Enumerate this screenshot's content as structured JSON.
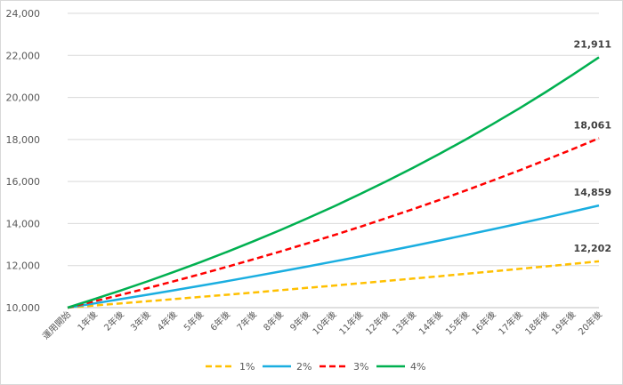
{
  "chart_data": {
    "type": "line",
    "title": "",
    "xlabel": "",
    "ylabel": "",
    "ylim": [
      10000,
      24000
    ],
    "yticks": [
      10000,
      12000,
      14000,
      16000,
      18000,
      20000,
      22000,
      24000
    ],
    "ytick_labels": [
      "10,000",
      "12,000",
      "14,000",
      "16,000",
      "18,000",
      "20,000",
      "22,000",
      "24,000"
    ],
    "grid": true,
    "legend_position": "bottom",
    "categories": [
      "運用開始",
      "1年後",
      "2年後",
      "3年後",
      "4年後",
      "5年後",
      "6年後",
      "7年後",
      "8年後",
      "9年後",
      "10年後",
      "11年後",
      "12年後",
      "13年後",
      "14年後",
      "15年後",
      "16年後",
      "17年後",
      "18年後",
      "19年後",
      "20年後"
    ],
    "series": [
      {
        "name": "1%",
        "color": "#ffc000",
        "dash": "dashed",
        "values": [
          10000,
          10100,
          10201,
          10303,
          10406,
          10510,
          10615,
          10721,
          10829,
          10937,
          11046,
          11157,
          11268,
          11381,
          11495,
          11610,
          11726,
          11843,
          11961,
          12081,
          12202
        ],
        "end_label": "12,202"
      },
      {
        "name": "2%",
        "color": "#1aaee0",
        "dash": "solid",
        "values": [
          10000,
          10200,
          10404,
          10612,
          10824,
          11041,
          11262,
          11487,
          11717,
          11951,
          12190,
          12434,
          12682,
          12936,
          13195,
          13459,
          13728,
          14002,
          14282,
          14568,
          14859
        ],
        "end_label": "14,859"
      },
      {
        "name": "3%",
        "color": "#ff0000",
        "dash": "dashed",
        "values": [
          10000,
          10300,
          10609,
          10927,
          11255,
          11593,
          11941,
          12299,
          12668,
          13048,
          13439,
          13842,
          14258,
          14685,
          15126,
          15580,
          16047,
          16528,
          17024,
          17535,
          18061
        ],
        "end_label": "18,061"
      },
      {
        "name": "4%",
        "color": "#00b050",
        "dash": "solid",
        "values": [
          10000,
          10400,
          10816,
          11249,
          11699,
          12167,
          12653,
          13159,
          13686,
          14233,
          14802,
          15395,
          16010,
          16651,
          17317,
          18009,
          18730,
          19479,
          20258,
          21068,
          21911
        ],
        "end_label": "21,911"
      }
    ]
  }
}
